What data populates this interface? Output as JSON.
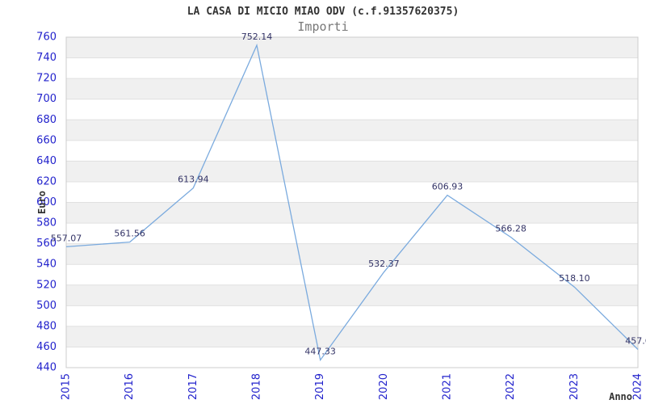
{
  "header": {
    "title": "LA CASA DI MICIO MIAO ODV (c.f.91357620375)",
    "subtitle": "Importi"
  },
  "chart_data": {
    "type": "line",
    "title": "LA CASA DI MICIO MIAO ODV (c.f.91357620375)",
    "subtitle": "Importi",
    "xlabel": "Anno",
    "ylabel": "Euro",
    "categories": [
      "2015",
      "2016",
      "2017",
      "2018",
      "2019",
      "2020",
      "2021",
      "2022",
      "2023",
      "2024"
    ],
    "values": [
      557.07,
      561.56,
      613.94,
      752.14,
      447.33,
      532.37,
      606.93,
      566.28,
      518.1,
      457.6
    ],
    "point_labels": [
      "557.07",
      "561.56",
      "613.94",
      "752.14",
      "447.33",
      "532.37",
      "606.93",
      "566.28",
      "518.10",
      "457.6"
    ],
    "ylim": [
      440,
      760
    ],
    "ytick_step": 20,
    "grid": true,
    "banded_background": true,
    "legend": "none",
    "colors": {
      "line": "#7aaade",
      "tick_label": "#2222cc",
      "data_label": "#333366",
      "band": "#f0f0f0",
      "grid": "#e0e0e0",
      "axis_border": "#cccccc",
      "title": "#333333",
      "subtitle": "#787878",
      "background": "#ffffff"
    }
  }
}
